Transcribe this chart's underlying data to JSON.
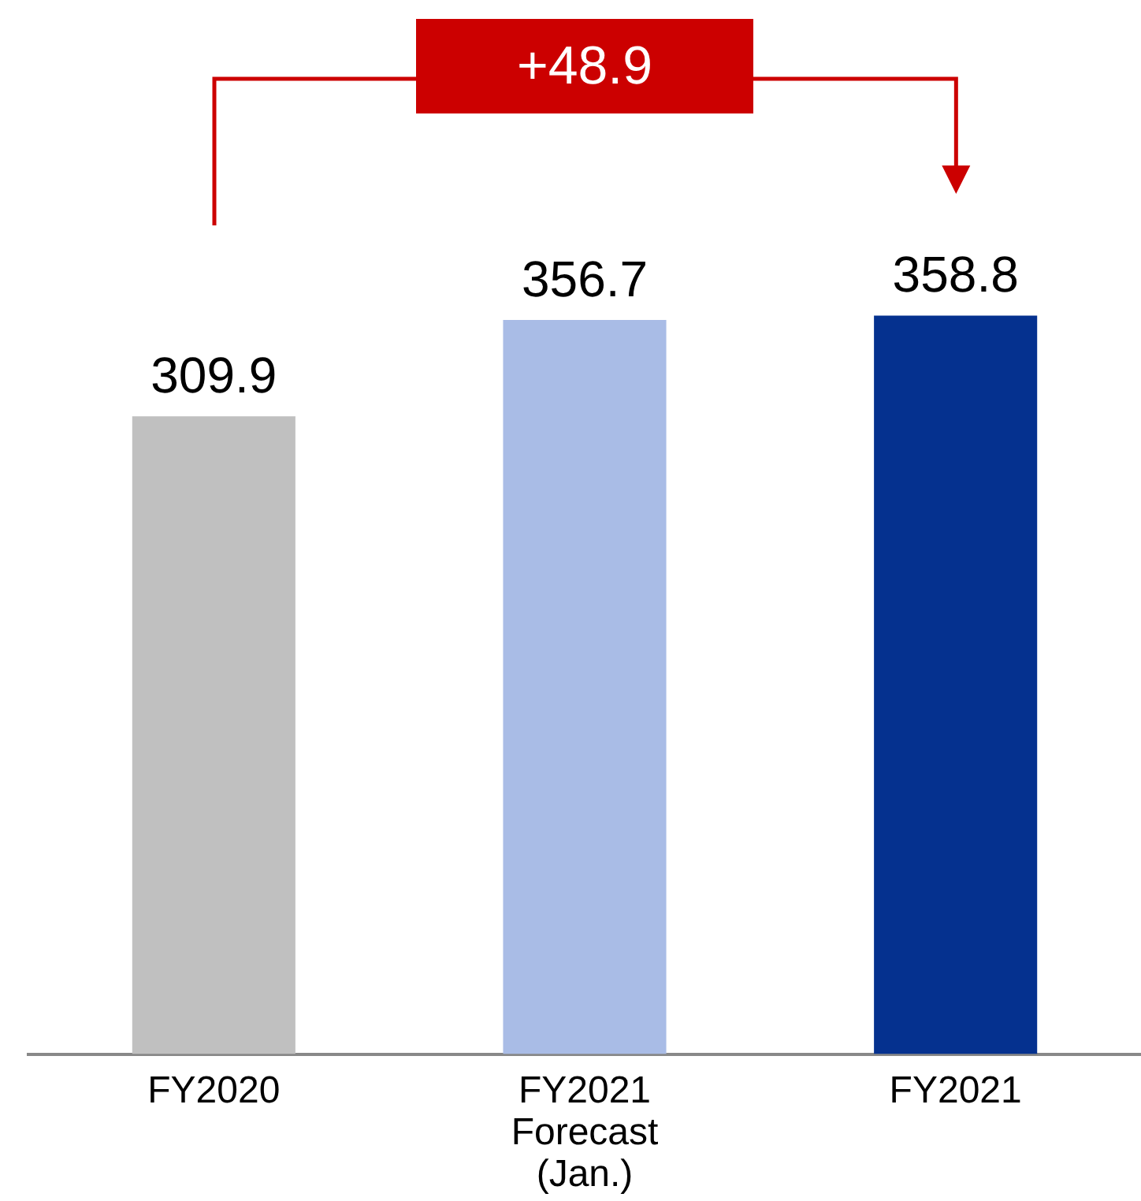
{
  "chart_data": {
    "type": "bar",
    "relative": false,
    "categories": [
      "FY2020",
      "FY2021 Forecast (Jan.)",
      "FY2021"
    ],
    "values": [
      309.9,
      356.7,
      358.8
    ],
    "colors": [
      "#c0c0c0",
      "#a9bce6",
      "#05318f"
    ],
    "data_labels": true,
    "annotations": [
      "+48.9"
    ]
  }
}
